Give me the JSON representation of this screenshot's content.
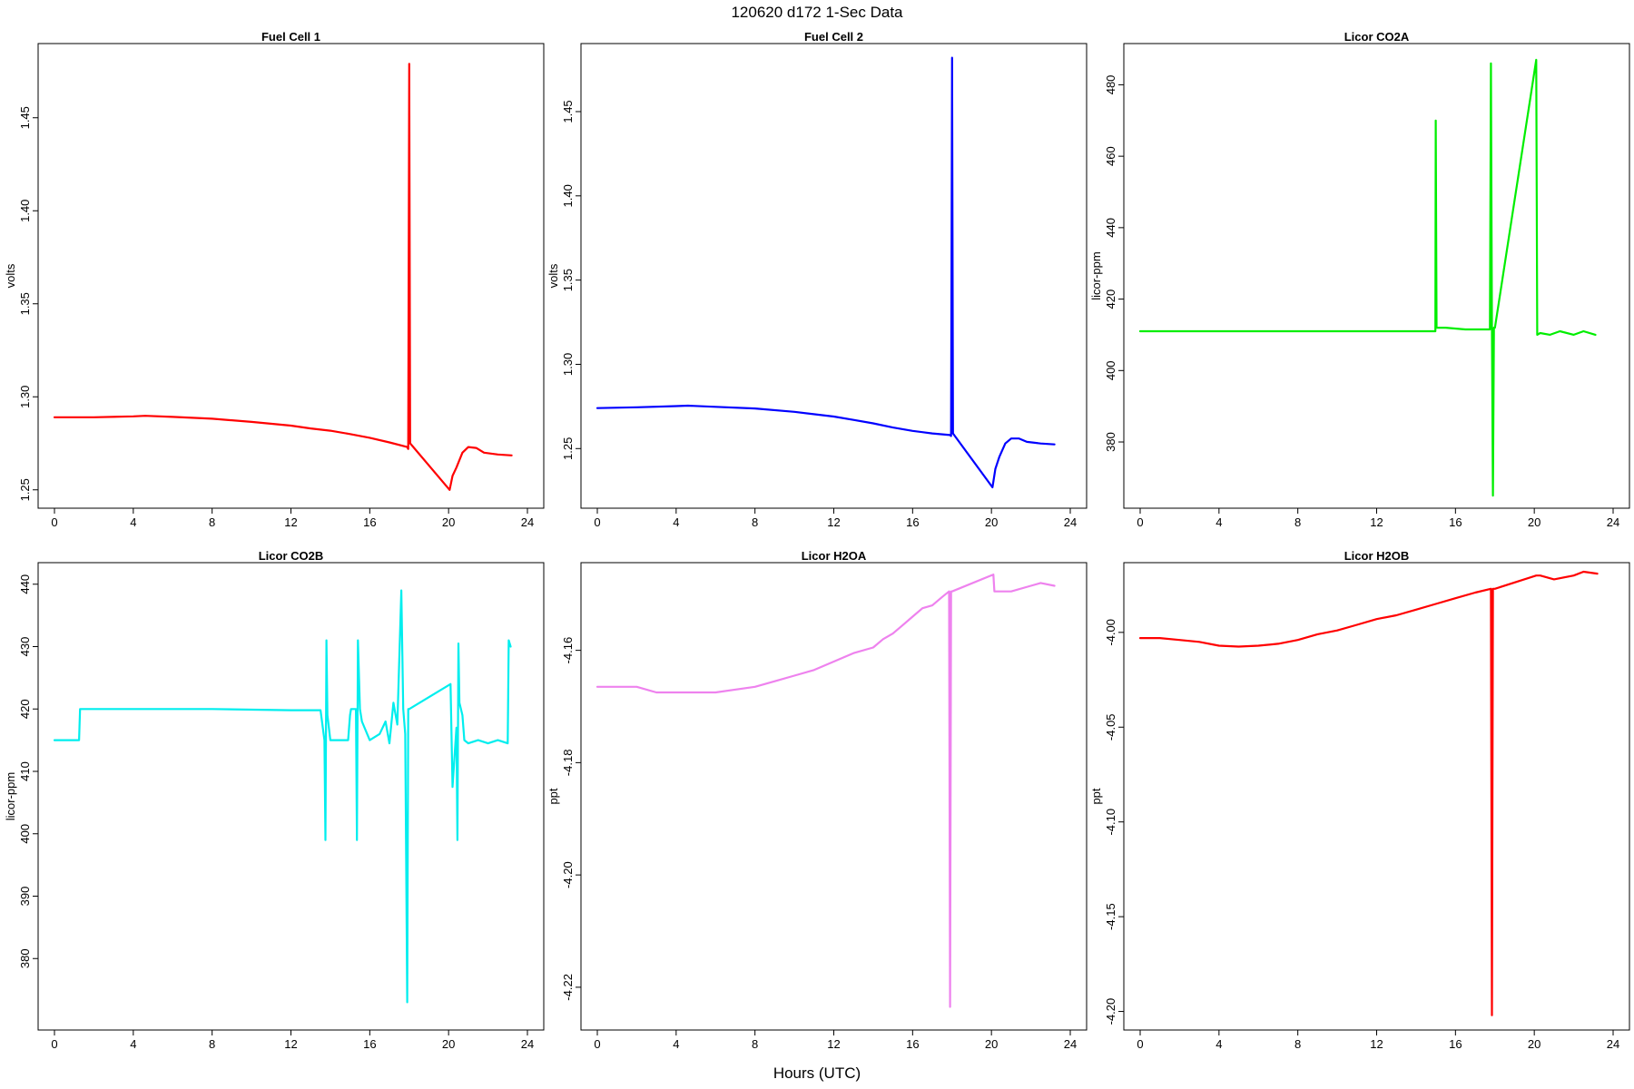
{
  "figure": {
    "title": "120620   d172   1-Sec Data",
    "xlabel": "Hours (UTC)"
  },
  "chart_data": [
    {
      "type": "line",
      "title": "Fuel Cell 1",
      "ylabel": "volts",
      "color": "#ff0000",
      "xlim": [
        0,
        24
      ],
      "ylim": [
        1.245,
        1.485
      ],
      "xticks": [
        0,
        4,
        8,
        12,
        16,
        20,
        24
      ],
      "xtick_labels": [
        "0",
        "4",
        "8",
        "12",
        "16",
        "20",
        "24"
      ],
      "yticks": [
        1.25,
        1.3,
        1.35,
        1.4,
        1.45
      ],
      "ytick_labels": [
        "1.25",
        "1.30",
        "1.35",
        "1.40",
        "1.45"
      ],
      "series": [
        {
          "x": [
            0,
            2,
            4,
            4.6,
            6,
            8,
            10,
            12,
            13,
            14,
            15,
            16,
            17,
            17.9,
            17.95,
            18.0,
            18.05,
            20.05,
            20.2,
            20.4,
            20.7,
            21.0,
            21.4,
            21.8,
            22.5,
            23.2
          ],
          "y": [
            1.289,
            1.289,
            1.2895,
            1.2898,
            1.2892,
            1.2882,
            1.2865,
            1.2845,
            1.283,
            1.2818,
            1.28,
            1.278,
            1.2755,
            1.273,
            1.272,
            1.479,
            1.275,
            1.25,
            1.2575,
            1.262,
            1.27,
            1.273,
            1.2725,
            1.27,
            1.269,
            1.2685
          ]
        }
      ]
    },
    {
      "type": "line",
      "title": "Fuel Cell 2",
      "ylabel": "volts",
      "color": "#0000ff",
      "xlim": [
        0,
        24
      ],
      "ylim": [
        1.22,
        1.485
      ],
      "xticks": [
        0,
        4,
        8,
        12,
        16,
        20,
        24
      ],
      "xtick_labels": [
        "0",
        "4",
        "8",
        "12",
        "16",
        "20",
        "24"
      ],
      "yticks": [
        1.25,
        1.3,
        1.35,
        1.4,
        1.45
      ],
      "ytick_labels": [
        "1.25",
        "1.30",
        "1.35",
        "1.40",
        "1.45"
      ],
      "series": [
        {
          "x": [
            0,
            2,
            4,
            4.6,
            6,
            8,
            10,
            12,
            13,
            14,
            15,
            16,
            17,
            17.9,
            17.95,
            18.0,
            18.05,
            20.05,
            20.2,
            20.4,
            20.7,
            21.0,
            21.4,
            21.8,
            22.5,
            23.2
          ],
          "y": [
            1.274,
            1.2745,
            1.2752,
            1.2755,
            1.2748,
            1.2738,
            1.2718,
            1.269,
            1.267,
            1.265,
            1.2625,
            1.2605,
            1.259,
            1.258,
            1.2575,
            1.482,
            1.259,
            1.227,
            1.238,
            1.245,
            1.253,
            1.256,
            1.256,
            1.254,
            1.253,
            1.2525
          ]
        }
      ]
    },
    {
      "type": "line",
      "title": "Licor CO2A",
      "ylabel": "licor-ppm",
      "color": "#00ee00",
      "xlim": [
        0,
        24
      ],
      "ylim": [
        364,
        489
      ],
      "xticks": [
        0,
        4,
        8,
        12,
        16,
        20,
        24
      ],
      "xtick_labels": [
        "0",
        "4",
        "8",
        "12",
        "16",
        "20",
        "24"
      ],
      "yticks": [
        380,
        400,
        420,
        440,
        460,
        480
      ],
      "ytick_labels": [
        "380",
        "400",
        "420",
        "440",
        "460",
        "480"
      ],
      "series": [
        {
          "x": [
            0,
            4,
            8,
            12,
            14.9,
            14.98,
            15.0,
            15.04,
            15.5,
            16.5,
            17.3,
            17.75,
            17.8,
            17.85,
            17.9,
            17.95,
            18.0,
            20.1,
            20.15,
            20.3,
            20.8,
            21.3,
            22,
            22.5,
            23.1
          ],
          "y": [
            411,
            411,
            411,
            411,
            411,
            411,
            470,
            412,
            412,
            411.5,
            411.5,
            411.5,
            486,
            412,
            365,
            412,
            412,
            487,
            410,
            410.5,
            410,
            411,
            410,
            411,
            410
          ]
        }
      ]
    },
    {
      "type": "line",
      "title": "Licor CO2B",
      "ylabel": "licor-ppm",
      "color": "#00eeee",
      "xlim": [
        0,
        24
      ],
      "ylim": [
        370,
        442
      ],
      "xticks": [
        0,
        4,
        8,
        12,
        16,
        20,
        24
      ],
      "xtick_labels": [
        "0",
        "4",
        "8",
        "12",
        "16",
        "20",
        "24"
      ],
      "yticks": [
        380,
        390,
        400,
        410,
        420,
        430,
        440
      ],
      "ytick_labels": [
        "380",
        "390",
        "400",
        "410",
        "420",
        "430",
        "440"
      ],
      "series": [
        {
          "x": [
            0,
            1.25,
            1.3,
            4,
            8,
            12,
            13.5,
            13.7,
            13.75,
            13.8,
            13.85,
            14.0,
            14.3,
            14.9,
            15.0,
            15.05,
            15.3,
            15.35,
            15.4,
            15.5,
            15.6,
            16.0,
            16.5,
            16.8,
            17.0,
            17.2,
            17.4,
            17.6,
            17.7,
            17.8,
            17.9,
            17.95,
            18.0,
            20.1,
            20.2,
            20.4,
            20.45,
            20.5,
            20.55,
            20.7,
            20.8,
            21.0,
            21.5,
            22,
            22.5,
            23.0,
            23.05,
            23.15
          ],
          "y": [
            415,
            415,
            420,
            420,
            420,
            419.8,
            419.8,
            415,
            399,
            431,
            419,
            415,
            415,
            415,
            419,
            420,
            420,
            399,
            431,
            420,
            418,
            415,
            416,
            418,
            414.5,
            421,
            417.5,
            439,
            420,
            416,
            373,
            420,
            420,
            424,
            407.5,
            417,
            399,
            430.5,
            421,
            419,
            415,
            414.5,
            415,
            414.5,
            415,
            414.5,
            431,
            430
          ]
        }
      ]
    },
    {
      "type": "line",
      "title": "Licor H2OA",
      "ylabel": "ppt",
      "color": "#ee82ee",
      "xlim": [
        0,
        24
      ],
      "ylim": [
        -4.226,
        -4.146
      ],
      "xticks": [
        0,
        4,
        8,
        12,
        16,
        20,
        24
      ],
      "xtick_labels": [
        "0",
        "4",
        "8",
        "12",
        "16",
        "20",
        "24"
      ],
      "yticks": [
        -4.22,
        -4.2,
        -4.18,
        -4.16
      ],
      "ytick_labels": [
        "-4.22",
        "-4.20",
        "-4.18",
        "-4.16"
      ],
      "series": [
        {
          "x": [
            0,
            2,
            3,
            4,
            6,
            8,
            9,
            10,
            11,
            12,
            13,
            14,
            14.5,
            15,
            15.5,
            16,
            16.5,
            17,
            17.5,
            17.85,
            17.9,
            17.95,
            18.0,
            20.1,
            20.15,
            21,
            22,
            22.5,
            23.2
          ],
          "y": [
            -4.1665,
            -4.1665,
            -4.1675,
            -4.1675,
            -4.1675,
            -4.1665,
            -4.1655,
            -4.1645,
            -4.1635,
            -4.162,
            -4.1605,
            -4.1595,
            -4.158,
            -4.157,
            -4.1555,
            -4.154,
            -4.1525,
            -4.152,
            -4.1505,
            -4.1495,
            -4.2235,
            -4.1495,
            -4.1495,
            -4.1465,
            -4.1495,
            -4.1495,
            -4.1485,
            -4.148,
            -4.1485
          ]
        }
      ]
    },
    {
      "type": "line",
      "title": "Licor H2OB",
      "ylabel": "ppt",
      "color": "#ff0000",
      "xlim": [
        0,
        24
      ],
      "ylim": [
        -4.205,
        -3.968
      ],
      "xticks": [
        0,
        4,
        8,
        12,
        16,
        20,
        24
      ],
      "xtick_labels": [
        "0",
        "4",
        "8",
        "12",
        "16",
        "20",
        "24"
      ],
      "yticks": [
        -4.2,
        -4.15,
        -4.1,
        -4.05,
        -4.0
      ],
      "ytick_labels": [
        "-4.20",
        "-4.15",
        "-4.10",
        "-4.05",
        "-4.00"
      ],
      "series": [
        {
          "x": [
            0,
            1,
            2,
            3,
            4,
            5,
            6,
            7,
            8,
            9,
            10,
            11,
            12,
            13,
            14,
            15,
            16,
            17,
            17.8,
            17.85,
            17.9,
            17.95,
            18.0,
            20.1,
            20.3,
            21,
            22,
            22.5,
            23.2
          ],
          "y": [
            -4.003,
            -4.003,
            -4.004,
            -4.005,
            -4.007,
            -4.0075,
            -4.007,
            -4.006,
            -4.004,
            -4.001,
            -3.999,
            -3.996,
            -3.993,
            -3.991,
            -3.988,
            -3.985,
            -3.982,
            -3.979,
            -3.977,
            -4.202,
            -3.977,
            -3.977,
            -3.977,
            -3.97,
            -3.97,
            -3.972,
            -3.97,
            -3.968,
            -3.969
          ]
        }
      ]
    }
  ]
}
